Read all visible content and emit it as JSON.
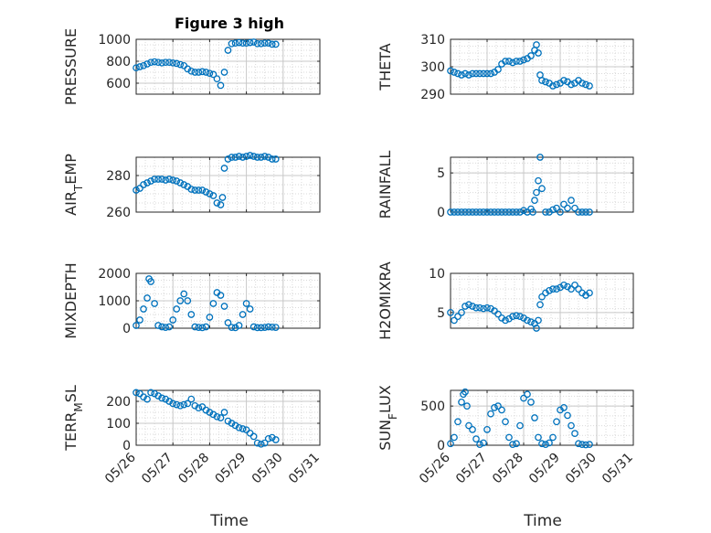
{
  "title": "Figure 3 high",
  "xlabel": "Time",
  "x_tick_labels": [
    "05/26",
    "05/27",
    "05/28",
    "05/29",
    "05/30",
    "05/31"
  ],
  "colors": {
    "marker": "#0072BD",
    "axis": "#262626",
    "grid": "#d9d9d9"
  },
  "chart_data": [
    {
      "type": "scatter",
      "ylabel": "PRESSURE",
      "ylabel_sub": null,
      "ylim": [
        500,
        1000
      ],
      "yticks": [
        600,
        800,
        1000
      ],
      "x": [
        0.0,
        0.1,
        0.2,
        0.3,
        0.4,
        0.5,
        0.6,
        0.7,
        0.8,
        0.9,
        1.0,
        1.1,
        1.2,
        1.3,
        1.4,
        1.5,
        1.6,
        1.7,
        1.8,
        1.9,
        2.0,
        2.1,
        2.2,
        2.3,
        2.4,
        2.5,
        2.6,
        2.7,
        2.8,
        2.9,
        3.0,
        3.1,
        3.2,
        3.3,
        3.4,
        3.5,
        3.6,
        3.7,
        3.8
      ],
      "y": [
        740,
        750,
        760,
        775,
        790,
        795,
        790,
        785,
        790,
        790,
        785,
        780,
        770,
        760,
        730,
        710,
        700,
        700,
        705,
        700,
        690,
        680,
        640,
        580,
        700,
        900,
        960,
        965,
        970,
        965,
        965,
        970,
        975,
        960,
        960,
        965,
        965,
        955,
        955
      ]
    },
    {
      "type": "scatter",
      "ylabel": "THETA",
      "ylabel_sub": null,
      "ylim": [
        290,
        310
      ],
      "yticks": [
        290,
        300,
        310
      ],
      "x": [
        0.0,
        0.1,
        0.2,
        0.3,
        0.4,
        0.5,
        0.6,
        0.7,
        0.8,
        0.9,
        1.0,
        1.1,
        1.2,
        1.3,
        1.4,
        1.5,
        1.6,
        1.7,
        1.8,
        1.9,
        2.0,
        2.1,
        2.2,
        2.3,
        2.35,
        2.4,
        2.45,
        2.5,
        2.6,
        2.7,
        2.8,
        2.9,
        3.0,
        3.1,
        3.2,
        3.3,
        3.4,
        3.5,
        3.6,
        3.7,
        3.8
      ],
      "y": [
        298.5,
        298,
        297.5,
        297,
        297.5,
        297,
        297.5,
        297.5,
        297.5,
        297.5,
        297.5,
        297.5,
        298,
        299,
        301,
        302,
        302,
        301.5,
        302,
        302,
        302.5,
        303,
        304,
        306,
        308,
        305,
        297,
        295,
        294.5,
        294,
        293,
        293.5,
        294,
        295,
        294.5,
        293.5,
        294,
        295,
        294,
        293.5,
        293
      ]
    },
    {
      "type": "scatter",
      "ylabel": "AIR",
      "ylabel_sub": "T",
      "ylabel_rest": "EMP",
      "ylim": [
        260,
        290
      ],
      "yticks": [
        260,
        280
      ],
      "x": [
        0.0,
        0.1,
        0.2,
        0.3,
        0.4,
        0.5,
        0.6,
        0.7,
        0.8,
        0.9,
        1.0,
        1.1,
        1.2,
        1.3,
        1.4,
        1.5,
        1.6,
        1.7,
        1.8,
        1.9,
        2.0,
        2.1,
        2.2,
        2.3,
        2.35,
        2.4,
        2.5,
        2.6,
        2.7,
        2.8,
        2.9,
        3.0,
        3.1,
        3.2,
        3.3,
        3.4,
        3.5,
        3.6,
        3.7,
        3.8
      ],
      "y": [
        272,
        273,
        275,
        276,
        277,
        278,
        278,
        278,
        277.5,
        278,
        277.5,
        277,
        276,
        275,
        274,
        272.5,
        272,
        272,
        272,
        271,
        270,
        269,
        265,
        264,
        268,
        284,
        289,
        290,
        290,
        290.5,
        290,
        290.5,
        291,
        290.5,
        290,
        290,
        290.5,
        290,
        289,
        289
      ]
    },
    {
      "type": "scatter",
      "ylabel": "RAINFALL",
      "ylabel_sub": null,
      "ylim": [
        0,
        7
      ],
      "yticks": [
        0,
        5
      ],
      "x": [
        0.0,
        0.1,
        0.2,
        0.3,
        0.4,
        0.5,
        0.6,
        0.7,
        0.8,
        0.9,
        1.0,
        1.1,
        1.2,
        1.3,
        1.4,
        1.5,
        1.6,
        1.7,
        1.8,
        1.9,
        2.0,
        2.1,
        2.2,
        2.25,
        2.3,
        2.35,
        2.4,
        2.45,
        2.5,
        2.6,
        2.7,
        2.8,
        2.9,
        3.0,
        3.1,
        3.2,
        3.3,
        3.4,
        3.5,
        3.6,
        3.7,
        3.8
      ],
      "y": [
        0,
        0,
        0,
        0,
        0,
        0,
        0,
        0,
        0,
        0,
        0,
        0,
        0,
        0,
        0,
        0,
        0,
        0,
        0,
        0,
        0.2,
        0,
        0.4,
        0,
        1.5,
        2.5,
        4,
        7,
        3,
        0,
        0,
        0.3,
        0.5,
        0,
        1,
        0.5,
        1.5,
        0.5,
        0,
        0,
        0,
        0
      ]
    },
    {
      "type": "scatter",
      "ylabel": "MIXDEPTH",
      "ylabel_sub": null,
      "ylim": [
        0,
        2000
      ],
      "yticks": [
        0,
        1000,
        2000
      ],
      "x": [
        0.0,
        0.1,
        0.2,
        0.3,
        0.35,
        0.4,
        0.5,
        0.6,
        0.7,
        0.8,
        0.9,
        1.0,
        1.1,
        1.2,
        1.3,
        1.4,
        1.5,
        1.6,
        1.7,
        1.8,
        1.9,
        2.0,
        2.1,
        2.2,
        2.3,
        2.4,
        2.5,
        2.6,
        2.7,
        2.8,
        2.9,
        3.0,
        3.1,
        3.2,
        3.3,
        3.4,
        3.5,
        3.6,
        3.7,
        3.8
      ],
      "y": [
        100,
        300,
        700,
        1100,
        1800,
        1700,
        900,
        100,
        50,
        30,
        50,
        300,
        700,
        1000,
        1250,
        1000,
        500,
        50,
        30,
        20,
        50,
        400,
        900,
        1300,
        1200,
        800,
        200,
        30,
        20,
        100,
        500,
        900,
        700,
        50,
        20,
        20,
        30,
        50,
        40,
        30
      ]
    },
    {
      "type": "scatter",
      "ylabel": "H2OMIXRA",
      "ylabel_sub": null,
      "ylim": [
        3,
        10
      ],
      "yticks": [
        5,
        10
      ],
      "x": [
        0.0,
        0.1,
        0.2,
        0.3,
        0.4,
        0.5,
        0.6,
        0.7,
        0.8,
        0.9,
        1.0,
        1.1,
        1.2,
        1.3,
        1.4,
        1.5,
        1.6,
        1.7,
        1.8,
        1.9,
        2.0,
        2.1,
        2.2,
        2.3,
        2.35,
        2.4,
        2.45,
        2.5,
        2.6,
        2.7,
        2.8,
        2.9,
        3.0,
        3.1,
        3.2,
        3.3,
        3.4,
        3.5,
        3.6,
        3.7,
        3.8
      ],
      "y": [
        5,
        4,
        4.5,
        5,
        5.8,
        6,
        5.8,
        5.6,
        5.6,
        5.5,
        5.6,
        5.5,
        5.2,
        4.8,
        4.3,
        4,
        4.2,
        4.5,
        4.6,
        4.5,
        4.3,
        4,
        3.8,
        3.6,
        3,
        4,
        6,
        7,
        7.5,
        7.8,
        8,
        8,
        8.2,
        8.5,
        8.3,
        8,
        8.5,
        8,
        7.5,
        7.2,
        7.5
      ]
    },
    {
      "type": "scatter",
      "ylabel": "TERR",
      "ylabel_sub": "M",
      "ylabel_rest": "SL",
      "ylim": [
        0,
        250
      ],
      "yticks": [
        0,
        100,
        200
      ],
      "x": [
        0.0,
        0.1,
        0.2,
        0.3,
        0.4,
        0.5,
        0.6,
        0.7,
        0.8,
        0.9,
        1.0,
        1.1,
        1.2,
        1.3,
        1.4,
        1.5,
        1.6,
        1.7,
        1.8,
        1.9,
        2.0,
        2.1,
        2.2,
        2.3,
        2.4,
        2.5,
        2.6,
        2.7,
        2.8,
        2.9,
        3.0,
        3.1,
        3.2,
        3.3,
        3.4,
        3.5,
        3.6,
        3.7,
        3.8
      ],
      "y": [
        240,
        235,
        220,
        210,
        240,
        235,
        225,
        215,
        210,
        200,
        190,
        185,
        180,
        185,
        190,
        210,
        180,
        170,
        175,
        160,
        150,
        140,
        130,
        125,
        150,
        110,
        100,
        90,
        80,
        75,
        70,
        55,
        40,
        10,
        5,
        10,
        30,
        35,
        25
      ]
    },
    {
      "type": "scatter",
      "ylabel": "SUN",
      "ylabel_sub": "F",
      "ylabel_rest": "LUX",
      "ylim": [
        0,
        700
      ],
      "yticks": [
        0,
        500
      ],
      "x": [
        0.0,
        0.1,
        0.2,
        0.3,
        0.35,
        0.4,
        0.45,
        0.5,
        0.6,
        0.7,
        0.8,
        0.9,
        1.0,
        1.1,
        1.2,
        1.3,
        1.4,
        1.5,
        1.6,
        1.7,
        1.8,
        1.9,
        2.0,
        2.1,
        2.2,
        2.3,
        2.4,
        2.5,
        2.6,
        2.7,
        2.8,
        2.9,
        3.0,
        3.1,
        3.2,
        3.3,
        3.4,
        3.5,
        3.6,
        3.7,
        3.8
      ],
      "y": [
        20,
        100,
        300,
        550,
        650,
        680,
        500,
        250,
        200,
        80,
        10,
        30,
        200,
        400,
        480,
        500,
        450,
        300,
        100,
        10,
        20,
        250,
        600,
        650,
        550,
        350,
        100,
        20,
        10,
        30,
        100,
        300,
        450,
        480,
        380,
        250,
        150,
        20,
        10,
        5,
        10
      ]
    }
  ]
}
